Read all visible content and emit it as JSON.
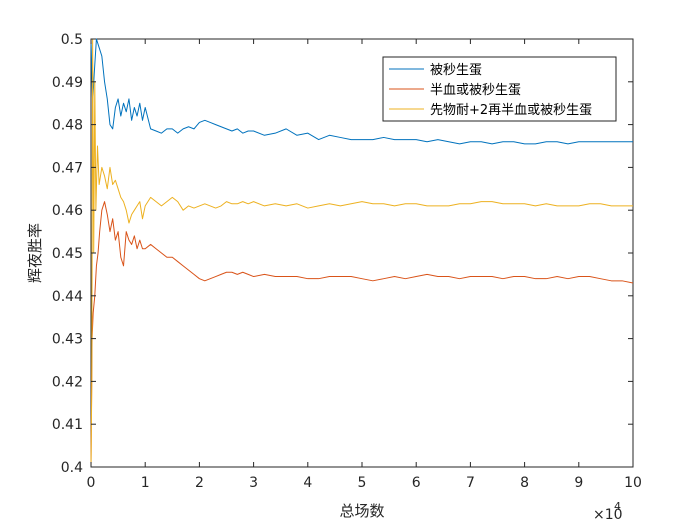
{
  "chart_data": {
    "type": "line",
    "xlabel": "总场数",
    "ylabel": "辉夜胜率",
    "x_exponent_label": "×10",
    "x_exponent_power": "4",
    "xlim": [
      0,
      100000
    ],
    "ylim": [
      0.4,
      0.5
    ],
    "x_ticks": [
      0,
      10000,
      20000,
      30000,
      40000,
      50000,
      60000,
      70000,
      80000,
      90000,
      100000
    ],
    "x_tick_labels": [
      "0",
      "1",
      "2",
      "3",
      "4",
      "5",
      "6",
      "7",
      "8",
      "9",
      "10"
    ],
    "y_ticks": [
      0.4,
      0.41,
      0.42,
      0.43,
      0.44,
      0.45,
      0.46,
      0.47,
      0.48,
      0.49,
      0.5
    ],
    "y_tick_labels": [
      "0.4",
      "0.41",
      "0.42",
      "0.43",
      "0.44",
      "0.45",
      "0.46",
      "0.47",
      "0.48",
      "0.49",
      "0.5"
    ],
    "legend_position": "top-right",
    "grid": false,
    "series": [
      {
        "name": "被秒生蛋",
        "color": "#0072BD",
        "x": [
          0,
          300,
          600,
          1000,
          1500,
          2000,
          2500,
          3000,
          3500,
          4000,
          4500,
          5000,
          5500,
          6000,
          6500,
          7000,
          7500,
          8000,
          8500,
          9000,
          9500,
          10000,
          11000,
          12000,
          13000,
          14000,
          15000,
          16000,
          17000,
          18000,
          19000,
          20000,
          21000,
          22000,
          23000,
          24000,
          25000,
          26000,
          27000,
          28000,
          29000,
          30000,
          32000,
          34000,
          36000,
          38000,
          40000,
          42000,
          44000,
          46000,
          48000,
          50000,
          52000,
          54000,
          56000,
          58000,
          60000,
          62000,
          64000,
          66000,
          68000,
          70000,
          72000,
          74000,
          76000,
          78000,
          80000,
          82000,
          84000,
          86000,
          88000,
          90000,
          92000,
          94000,
          96000,
          98000,
          100000
        ],
        "y": [
          0.5,
          0.485,
          0.492,
          0.5,
          0.498,
          0.496,
          0.49,
          0.486,
          0.48,
          0.479,
          0.484,
          0.486,
          0.482,
          0.485,
          0.483,
          0.486,
          0.481,
          0.484,
          0.482,
          0.485,
          0.481,
          0.484,
          0.479,
          0.4785,
          0.478,
          0.479,
          0.479,
          0.478,
          0.479,
          0.4795,
          0.479,
          0.4805,
          0.481,
          0.4805,
          0.48,
          0.4795,
          0.479,
          0.4785,
          0.479,
          0.478,
          0.4785,
          0.4785,
          0.4775,
          0.478,
          0.479,
          0.4775,
          0.478,
          0.4765,
          0.4775,
          0.477,
          0.4765,
          0.4765,
          0.4765,
          0.477,
          0.4765,
          0.4765,
          0.4765,
          0.476,
          0.4765,
          0.476,
          0.4755,
          0.476,
          0.476,
          0.4755,
          0.476,
          0.476,
          0.4755,
          0.4755,
          0.476,
          0.476,
          0.4755,
          0.476,
          0.476,
          0.476,
          0.476,
          0.476,
          0.476
        ]
      },
      {
        "name": "半血或被秒生蛋",
        "color": "#D95319",
        "x": [
          0,
          200,
          400,
          700,
          1000,
          1300,
          1600,
          2000,
          2500,
          3000,
          3500,
          4000,
          4500,
          5000,
          5500,
          6000,
          6500,
          7000,
          7500,
          8000,
          8500,
          9000,
          9500,
          10000,
          11000,
          12000,
          13000,
          14000,
          15000,
          16000,
          17000,
          18000,
          19000,
          20000,
          21000,
          22000,
          23000,
          24000,
          25000,
          26000,
          27000,
          28000,
          29000,
          30000,
          32000,
          34000,
          36000,
          38000,
          40000,
          42000,
          44000,
          46000,
          48000,
          50000,
          52000,
          54000,
          56000,
          58000,
          60000,
          62000,
          64000,
          66000,
          68000,
          70000,
          72000,
          74000,
          76000,
          78000,
          80000,
          82000,
          84000,
          86000,
          88000,
          90000,
          92000,
          94000,
          96000,
          98000,
          100000
        ],
        "y": [
          0.4,
          0.43,
          0.436,
          0.44,
          0.447,
          0.45,
          0.455,
          0.46,
          0.462,
          0.459,
          0.455,
          0.458,
          0.453,
          0.455,
          0.449,
          0.447,
          0.455,
          0.453,
          0.452,
          0.454,
          0.451,
          0.453,
          0.451,
          0.451,
          0.452,
          0.451,
          0.45,
          0.449,
          0.449,
          0.448,
          0.447,
          0.446,
          0.445,
          0.444,
          0.4435,
          0.444,
          0.4445,
          0.445,
          0.4455,
          0.4455,
          0.445,
          0.4455,
          0.445,
          0.4445,
          0.445,
          0.4445,
          0.4445,
          0.4445,
          0.444,
          0.444,
          0.4445,
          0.4445,
          0.4445,
          0.444,
          0.4435,
          0.444,
          0.4445,
          0.444,
          0.4445,
          0.445,
          0.4445,
          0.4445,
          0.444,
          0.4445,
          0.4445,
          0.4445,
          0.444,
          0.4445,
          0.4445,
          0.444,
          0.444,
          0.4445,
          0.444,
          0.4445,
          0.4445,
          0.444,
          0.4435,
          0.4435,
          0.443
        ]
      },
      {
        "name": "先物耐+2再半血或被秒生蛋",
        "color": "#EDB120",
        "x": [
          0,
          150,
          300,
          500,
          700,
          900,
          1200,
          1500,
          2000,
          2500,
          3000,
          3500,
          4000,
          4500,
          5000,
          5500,
          6000,
          6500,
          7000,
          7500,
          8000,
          8500,
          9000,
          9500,
          10000,
          11000,
          12000,
          13000,
          14000,
          15000,
          16000,
          17000,
          18000,
          19000,
          20000,
          21000,
          22000,
          23000,
          24000,
          25000,
          26000,
          27000,
          28000,
          29000,
          30000,
          32000,
          34000,
          36000,
          38000,
          40000,
          42000,
          44000,
          46000,
          48000,
          50000,
          52000,
          54000,
          56000,
          58000,
          60000,
          62000,
          64000,
          66000,
          68000,
          70000,
          72000,
          74000,
          76000,
          78000,
          80000,
          82000,
          84000,
          86000,
          88000,
          90000,
          92000,
          94000,
          96000,
          98000,
          100000
        ],
        "y": [
          0.4,
          0.42,
          0.5,
          0.45,
          0.49,
          0.46,
          0.475,
          0.466,
          0.47,
          0.468,
          0.465,
          0.47,
          0.466,
          0.467,
          0.465,
          0.463,
          0.462,
          0.46,
          0.457,
          0.459,
          0.46,
          0.461,
          0.462,
          0.458,
          0.461,
          0.463,
          0.462,
          0.461,
          0.462,
          0.463,
          0.462,
          0.46,
          0.461,
          0.4605,
          0.461,
          0.4615,
          0.461,
          0.4605,
          0.461,
          0.462,
          0.4615,
          0.4615,
          0.462,
          0.4615,
          0.462,
          0.461,
          0.4615,
          0.461,
          0.4615,
          0.4605,
          0.461,
          0.4615,
          0.461,
          0.4615,
          0.462,
          0.4615,
          0.4615,
          0.461,
          0.4615,
          0.4615,
          0.461,
          0.461,
          0.461,
          0.4615,
          0.4615,
          0.462,
          0.462,
          0.4615,
          0.4615,
          0.4615,
          0.461,
          0.4615,
          0.461,
          0.461,
          0.461,
          0.4615,
          0.4615,
          0.461,
          0.461,
          0.461
        ]
      }
    ]
  }
}
